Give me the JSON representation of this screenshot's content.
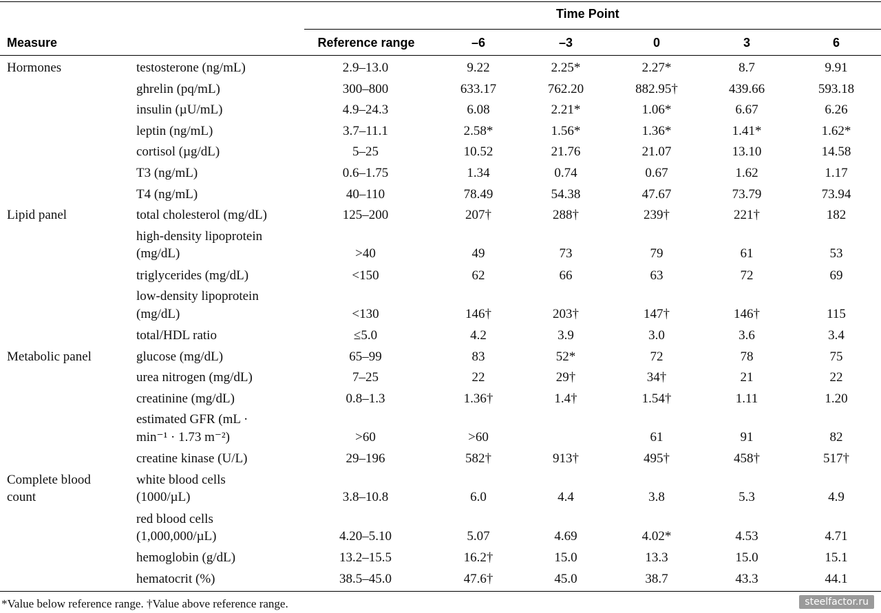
{
  "header": {
    "time_point": "Time Point",
    "measure": "Measure",
    "reference_range": "Reference range",
    "points": [
      "–6",
      "–3",
      "0",
      "3",
      "6"
    ]
  },
  "rows": [
    {
      "group": "Hormones",
      "item": [
        "testosterone (ng/mL)"
      ],
      "ref": "2.9–13.0",
      "vals": [
        "9.22",
        "2.25*",
        "2.27*",
        "8.7",
        "9.91"
      ]
    },
    {
      "group": "",
      "item": [
        "ghrelin (pq/mL)"
      ],
      "ref": "300–800",
      "vals": [
        "633.17",
        "762.20",
        "882.95†",
        "439.66",
        "593.18"
      ]
    },
    {
      "group": "",
      "item": [
        "insulin (µU/mL)"
      ],
      "ref": "4.9–24.3",
      "vals": [
        "6.08",
        "2.21*",
        "1.06*",
        "6.67",
        "6.26"
      ]
    },
    {
      "group": "",
      "item": [
        "leptin (ng/mL)"
      ],
      "ref": "3.7–11.1",
      "vals": [
        "2.58*",
        "1.56*",
        "1.36*",
        "1.41*",
        "1.62*"
      ]
    },
    {
      "group": "",
      "item": [
        "cortisol (µg/dL)"
      ],
      "ref": "5–25",
      "vals": [
        "10.52",
        "21.76",
        "21.07",
        "13.10",
        "14.58"
      ]
    },
    {
      "group": "",
      "item": [
        "T3 (ng/mL)"
      ],
      "ref": "0.6–1.75",
      "vals": [
        "1.34",
        "0.74",
        "0.67",
        "1.62",
        "1.17"
      ]
    },
    {
      "group": "",
      "item": [
        "T4 (ng/mL)"
      ],
      "ref": "40–110",
      "vals": [
        "78.49",
        "54.38",
        "47.67",
        "73.79",
        "73.94"
      ]
    },
    {
      "group": "Lipid panel",
      "item": [
        "total cholesterol (mg/dL)"
      ],
      "ref": "125–200",
      "vals": [
        "207†",
        "288†",
        "239†",
        "221†",
        "182"
      ]
    },
    {
      "group": "",
      "item": [
        "high-density lipoprotein",
        "(mg/dL)"
      ],
      "ref": ">40",
      "vals": [
        "49",
        "73",
        "79",
        "61",
        "53"
      ]
    },
    {
      "group": "",
      "item": [
        "triglycerides (mg/dL)"
      ],
      "ref": "<150",
      "vals": [
        "62",
        "66",
        "63",
        "72",
        "69"
      ]
    },
    {
      "group": "",
      "item": [
        "low-density lipoprotein",
        "(mg/dL)"
      ],
      "ref": "<130",
      "vals": [
        "146†",
        "203†",
        "147†",
        "146†",
        "115"
      ]
    },
    {
      "group": "",
      "item": [
        "total/HDL ratio"
      ],
      "ref": "≤5.0",
      "vals": [
        "4.2",
        "3.9",
        "3.0",
        "3.6",
        "3.4"
      ]
    },
    {
      "group": "Metabolic panel",
      "item": [
        "glucose (mg/dL)"
      ],
      "ref": "65–99",
      "vals": [
        "83",
        "52*",
        "72",
        "78",
        "75"
      ]
    },
    {
      "group": "",
      "item": [
        "urea nitrogen (mg/dL)"
      ],
      "ref": "7–25",
      "vals": [
        "22",
        "29†",
        "34†",
        "21",
        "22"
      ]
    },
    {
      "group": "",
      "item": [
        "creatinine (mg/dL)"
      ],
      "ref": "0.8–1.3",
      "vals": [
        "1.36†",
        "1.4†",
        "1.54†",
        "1.11",
        "1.20"
      ]
    },
    {
      "group": "",
      "item": [
        "estimated GFR (mL ·",
        "min⁻¹ · 1.73 m⁻²)"
      ],
      "ref": ">60",
      "vals": [
        ">60",
        "",
        "61",
        "91",
        "82"
      ]
    },
    {
      "group": "",
      "item": [
        "creatine kinase (U/L)"
      ],
      "ref": "29–196",
      "vals": [
        "582†",
        "913†",
        "495†",
        "458†",
        "517†"
      ]
    },
    {
      "group": "Complete blood|count",
      "item": [
        "white blood cells",
        "(1000/µL)"
      ],
      "ref": "3.8–10.8",
      "vals": [
        "6.0",
        "4.4",
        "3.8",
        "5.3",
        "4.9"
      ]
    },
    {
      "group": "",
      "item": [
        "red blood cells",
        "(1,000,000/µL)"
      ],
      "ref": "4.20–5.10",
      "vals": [
        "5.07",
        "4.69",
        "4.02*",
        "4.53",
        "4.71"
      ]
    },
    {
      "group": "",
      "item": [
        "hemoglobin (g/dL)"
      ],
      "ref": "13.2–15.5",
      "vals": [
        "16.2†",
        "15.0",
        "13.3",
        "15.0",
        "15.1"
      ]
    },
    {
      "group": "",
      "item": [
        "hematocrit (%)"
      ],
      "ref": "38.5–45.0",
      "vals": [
        "47.6†",
        "45.0",
        "38.7",
        "43.3",
        "44.1"
      ]
    }
  ],
  "footnote": "*Value below reference range. †Value above reference range.",
  "watermark": "steelfactor.ru"
}
